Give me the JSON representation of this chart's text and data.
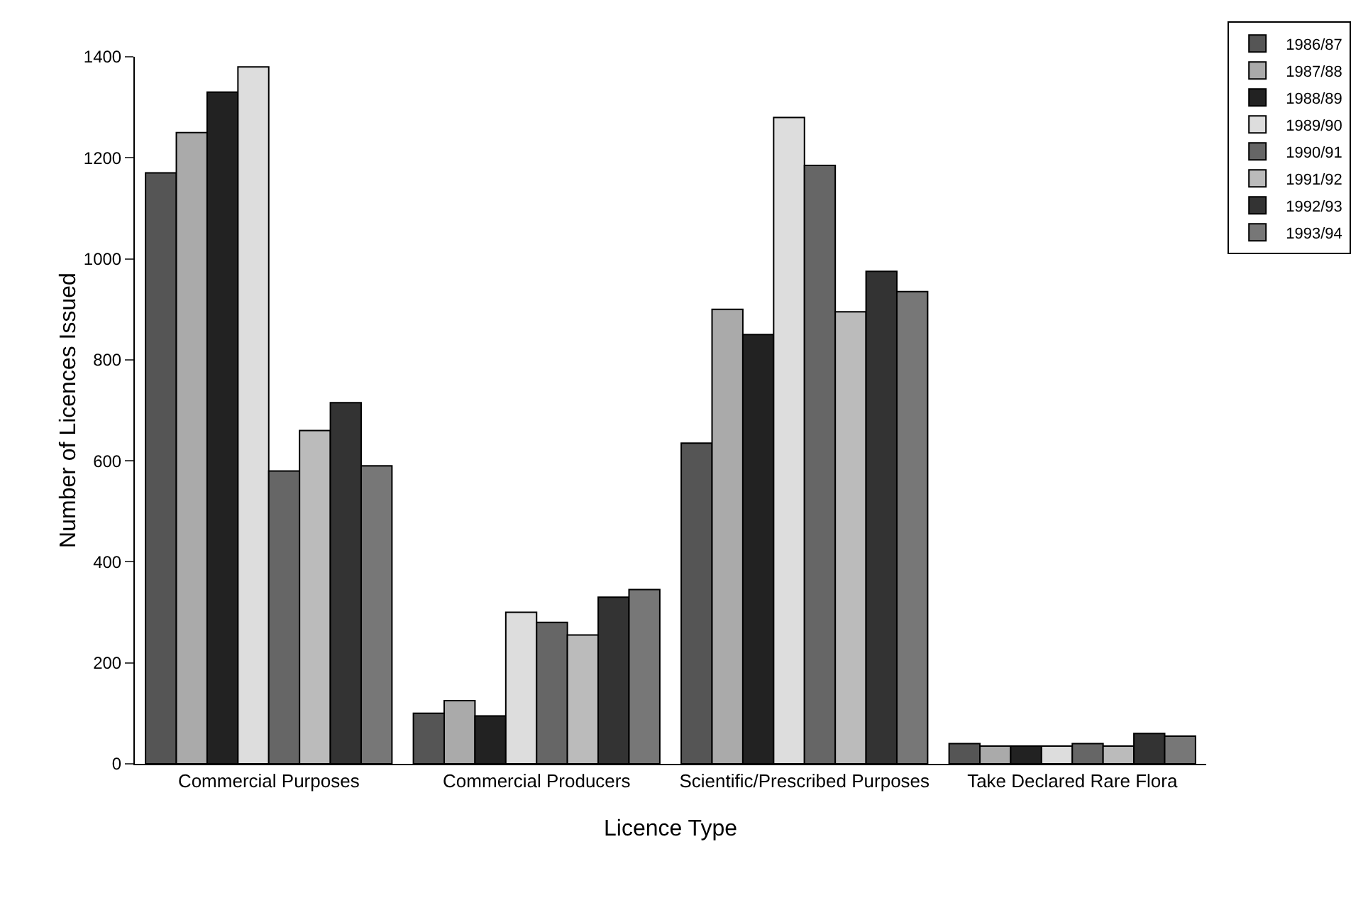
{
  "chart_data": {
    "type": "bar",
    "xlabel": "Licence Type",
    "ylabel": "Number of Licences Issued",
    "categories": [
      "Commercial Purposes",
      "Commercial Producers",
      "Scientific/Prescribed Purposes",
      "Take Declared Rare Flora"
    ],
    "series": [
      {
        "name": "1986/87",
        "color": "#555555",
        "values": [
          1170,
          100,
          635,
          40
        ]
      },
      {
        "name": "1987/88",
        "color": "#aaaaaa",
        "values": [
          1250,
          125,
          900,
          35
        ]
      },
      {
        "name": "1988/89",
        "color": "#222222",
        "values": [
          1330,
          95,
          850,
          35
        ]
      },
      {
        "name": "1989/90",
        "color": "#dddddd",
        "values": [
          1380,
          300,
          1280,
          35
        ]
      },
      {
        "name": "1990/91",
        "color": "#666666",
        "values": [
          580,
          280,
          1185,
          40
        ]
      },
      {
        "name": "1991/92",
        "color": "#bbbbbb",
        "values": [
          660,
          255,
          895,
          35
        ]
      },
      {
        "name": "1992/93",
        "color": "#333333",
        "values": [
          715,
          330,
          975,
          60
        ]
      },
      {
        "name": "1993/94",
        "color": "#777777",
        "values": [
          590,
          345,
          935,
          55
        ]
      }
    ],
    "ylim": [
      0,
      1400
    ],
    "yticks": [
      0,
      200,
      400,
      600,
      800,
      1000,
      1200,
      1400
    ],
    "grid": false,
    "legend": "top right"
  }
}
